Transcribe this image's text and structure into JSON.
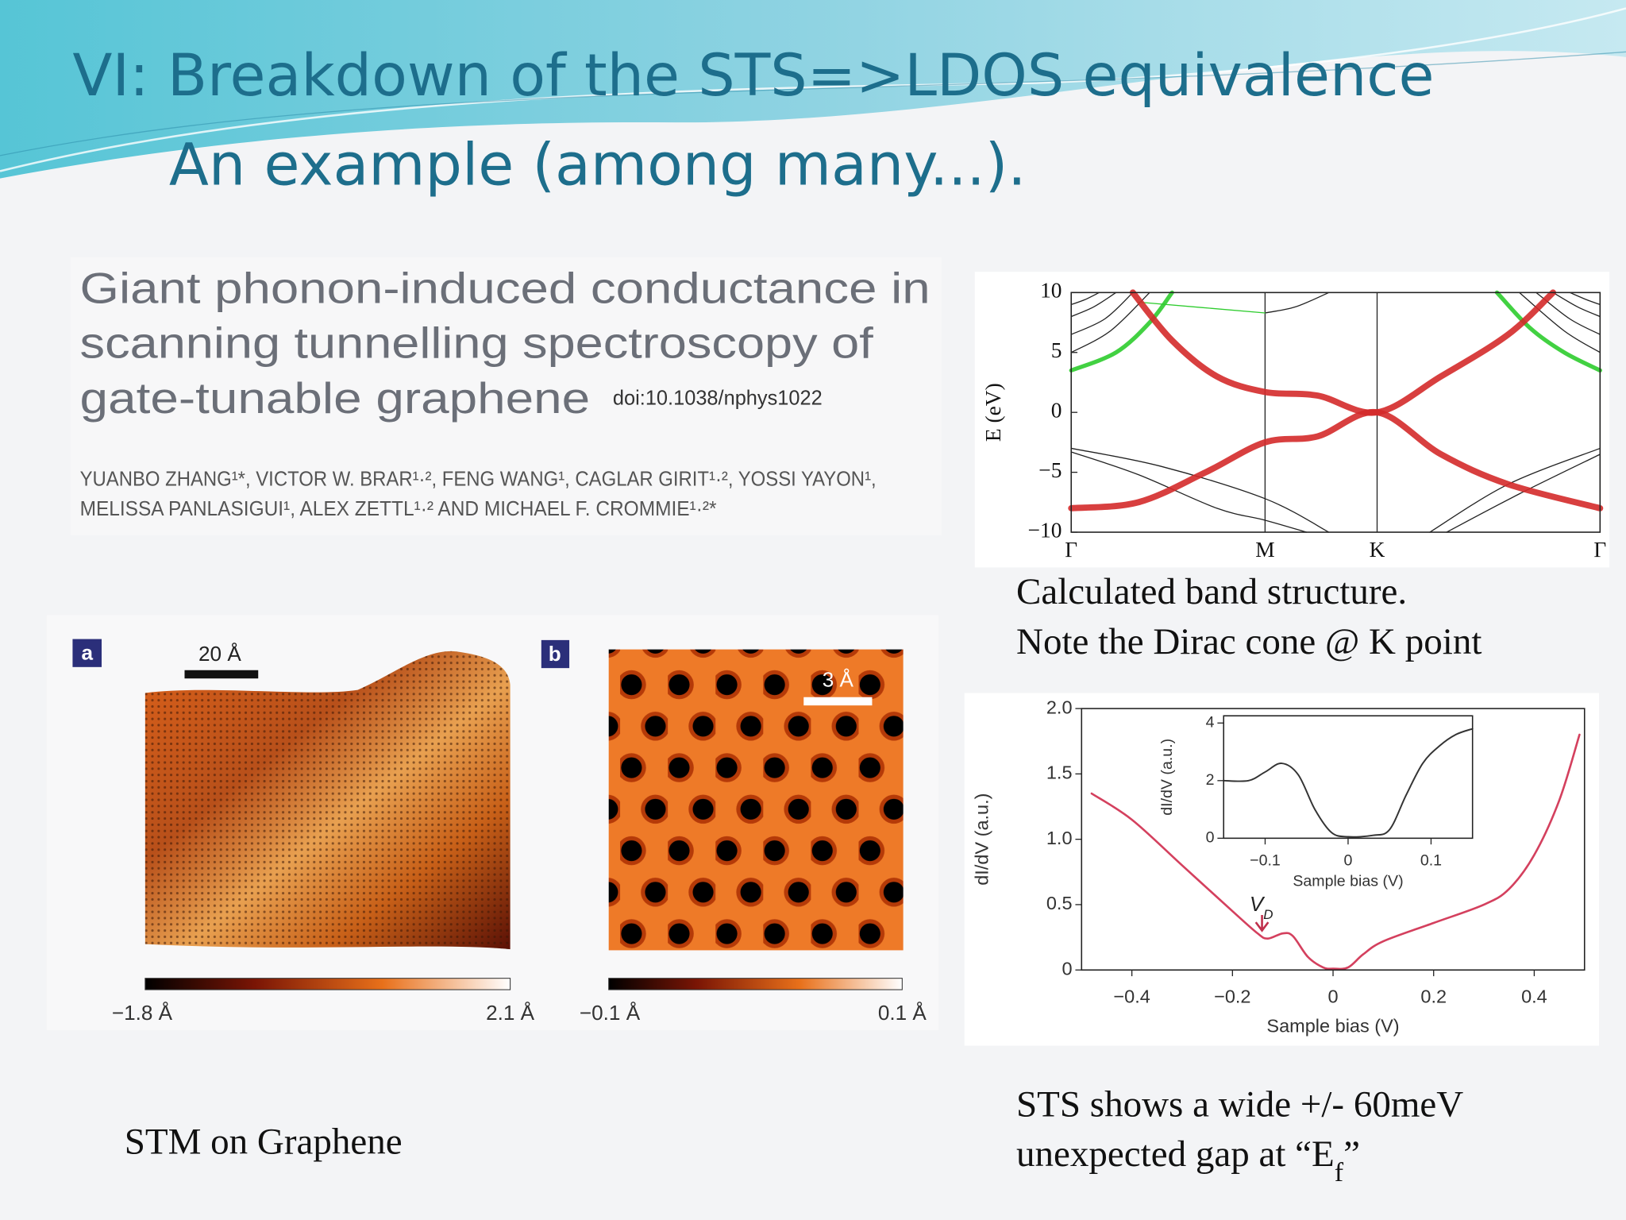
{
  "slide": {
    "title": "VI: Breakdown of the STS=>LDOS equivalence",
    "subtitle": "An example (among many...).",
    "paper": {
      "title_lines": [
        "Giant phonon-induced conductance in",
        "scanning tunnelling spectroscopy of",
        "gate-tunable graphene"
      ],
      "doi": "doi:10.1038/nphys1022",
      "author_lines": [
        "YUANBO ZHANG¹*, VICTOR W. BRAR¹·², FENG WANG¹, CAGLAR GIRIT¹·², YOSSI YAYON¹,",
        "MELISSA PANLASIGUI¹, ALEX ZETTL¹·² AND MICHAEL F. CROMMIE¹·²*"
      ]
    },
    "stm": {
      "panels": [
        {
          "letter": "a",
          "scale_bar": "20 Å",
          "colorbar_min": "−1.8 Å",
          "colorbar_max": "2.1 Å"
        },
        {
          "letter": "b",
          "scale_bar": "3 Å",
          "colorbar_min": "−0.1 Å",
          "colorbar_max": "0.1 Å"
        }
      ],
      "caption": "STM on Graphene"
    },
    "band_caption": [
      "Calculated band structure.",
      "Note the Dirac cone @ K point"
    ],
    "sts_caption": {
      "line1": "STS shows a wide +/- 60meV",
      "line2": "unexpected gap at “E",
      "line2_sub": "f",
      "line2_end": "”"
    }
  },
  "chart_data": [
    {
      "type": "line",
      "ylabel": "E (eV)",
      "xlim": [
        0,
        4.72
      ],
      "ylim": [
        -10,
        10
      ],
      "xticks": [
        {
          "value": 0,
          "label": "Γ"
        },
        {
          "value": 1.73,
          "label": "M"
        },
        {
          "value": 2.73,
          "label": "K"
        },
        {
          "value": 4.72,
          "label": "Γ"
        }
      ],
      "yticks": [
        {
          "value": -10,
          "label": "−10"
        },
        {
          "value": -5,
          "label": "−5"
        },
        0,
        5,
        10
      ],
      "grid": "x",
      "series": [
        {
          "color": "#222222",
          "width": 1,
          "x": [
            0,
            0.35,
            0.7
          ],
          "values": [
            5,
            6.8,
            10
          ]
        },
        {
          "color": "#222222",
          "width": 1,
          "x": [
            0,
            0.3,
            0.55
          ],
          "values": [
            6.5,
            7.8,
            10
          ]
        },
        {
          "color": "#222222",
          "width": 1,
          "x": [
            0,
            0.2,
            0.4
          ],
          "values": [
            8,
            8.8,
            10
          ]
        },
        {
          "color": "#222222",
          "width": 1,
          "x": [
            0,
            0.12,
            0.25
          ],
          "values": [
            9,
            9.4,
            10
          ]
        },
        {
          "color": "#222222",
          "width": 1,
          "x": [
            4.0,
            4.4,
            4.72
          ],
          "values": [
            10,
            6.8,
            5
          ]
        },
        {
          "color": "#222222",
          "width": 1,
          "x": [
            4.15,
            4.45,
            4.72
          ],
          "values": [
            10,
            7.8,
            6.5
          ]
        },
        {
          "color": "#222222",
          "width": 1,
          "x": [
            4.3,
            4.52,
            4.72
          ],
          "values": [
            10,
            8.8,
            8
          ]
        },
        {
          "color": "#222222",
          "width": 1,
          "x": [
            4.45,
            4.6,
            4.72
          ],
          "values": [
            10,
            9.4,
            9
          ]
        },
        {
          "color": "#222222",
          "width": 1,
          "x": [
            1.73,
            2.0,
            2.3
          ],
          "values": [
            8.3,
            8.8,
            10
          ]
        },
        {
          "color": "#222222",
          "width": 1,
          "x": [
            0,
            0.8,
            1.73,
            2.3
          ],
          "values": [
            -3,
            -4.5,
            -7.2,
            -10
          ]
        },
        {
          "color": "#222222",
          "width": 1,
          "x": [
            0,
            0.6,
            1.3,
            1.73,
            2.1
          ],
          "values": [
            -3.3,
            -5.2,
            -8,
            -9,
            -10
          ]
        },
        {
          "color": "#222222",
          "width": 1,
          "x": [
            3.2,
            3.9,
            4.72
          ],
          "values": [
            -10,
            -6,
            -3
          ]
        },
        {
          "color": "#222222",
          "width": 1,
          "x": [
            3.35,
            4.0,
            4.72
          ],
          "values": [
            -10,
            -6.8,
            -3.5
          ]
        },
        {
          "color": "#2ecc2e",
          "width": 4,
          "x": [
            0,
            0.4,
            0.7,
            0.9
          ],
          "values": [
            3.5,
            5,
            7.5,
            10
          ]
        },
        {
          "color": "#2ecc2e",
          "width": 4,
          "x": [
            3.8,
            4.1,
            4.4,
            4.72
          ],
          "values": [
            10,
            7,
            5,
            3.5
          ]
        },
        {
          "color": "#2ecc2e",
          "width": 1,
          "x": [
            0.6,
            1.73
          ],
          "values": [
            9.2,
            8.3
          ]
        },
        {
          "color": "#d42a2a",
          "width": 6,
          "x": [
            0.55,
            0.9,
            1.3,
            1.73,
            2.2,
            2.73,
            3.3,
            3.9,
            4.3
          ],
          "values": [
            10,
            6,
            3,
            1.7,
            1.4,
            0,
            3,
            6.5,
            10
          ]
        },
        {
          "color": "#d42a2a",
          "width": 6,
          "x": [
            0,
            0.6,
            1.2,
            1.73,
            2.2,
            2.73,
            3.3,
            3.9,
            4.72
          ],
          "values": [
            -8,
            -7.5,
            -5,
            -2.5,
            -2,
            0,
            -3.5,
            -6,
            -8
          ]
        }
      ]
    },
    {
      "type": "line",
      "xlabel": "Sample bias (V)",
      "ylabel": "dI/dV (a.u.)",
      "xlim": [
        -0.5,
        0.5
      ],
      "ylim": [
        0,
        2
      ],
      "xticks": [
        {
          "value": -0.4,
          "label": "−0.4"
        },
        {
          "value": -0.2,
          "label": "−0.2"
        },
        0,
        0.2,
        0.4
      ],
      "yticks": [
        0,
        0.5,
        {
          "value": 1,
          "label": "1.0"
        },
        1.5,
        {
          "value": 2,
          "label": "2.0"
        }
      ],
      "annotation": {
        "text": "V",
        "sub": "D"
      },
      "series": [
        {
          "color": "#d4405e",
          "width": 2,
          "x": [
            -0.48,
            -0.4,
            -0.3,
            -0.2,
            -0.15,
            -0.13,
            -0.1,
            -0.08,
            -0.05,
            -0.02,
            0,
            0.03,
            0.06,
            0.1,
            0.2,
            0.3,
            0.35,
            0.4,
            0.45,
            0.49
          ],
          "values": [
            1.35,
            1.15,
            0.8,
            0.45,
            0.28,
            0.24,
            0.28,
            0.26,
            0.1,
            0.02,
            0.01,
            0.02,
            0.12,
            0.22,
            0.36,
            0.5,
            0.62,
            0.88,
            1.3,
            1.8
          ]
        }
      ]
    },
    {
      "type": "line",
      "xlabel": "Sample bias (V)",
      "ylabel": "dI/dV (a.u.)",
      "xlim": [
        -0.15,
        0.15
      ],
      "ylim": [
        0,
        4.25
      ],
      "xticks": [
        {
          "value": -0.1,
          "label": "−0.1"
        },
        0,
        0.1
      ],
      "yticks": [
        0,
        2,
        4
      ],
      "series": [
        {
          "color": "#333333",
          "width": 1.5,
          "x": [
            -0.15,
            -0.12,
            -0.1,
            -0.08,
            -0.06,
            -0.04,
            -0.02,
            0,
            0.03,
            0.05,
            0.07,
            0.09,
            0.11,
            0.13,
            0.15
          ],
          "values": [
            2,
            2,
            2.3,
            2.6,
            2.2,
            1,
            0.2,
            0.05,
            0.1,
            0.3,
            1.5,
            2.6,
            3.2,
            3.6,
            3.8
          ]
        }
      ]
    }
  ]
}
